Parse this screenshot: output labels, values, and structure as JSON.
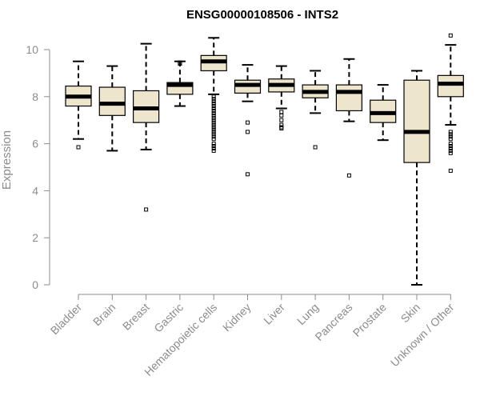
{
  "chart_data": {
    "type": "boxplot",
    "title": "ENSG00000108506 - INTS2",
    "ylabel": "Expression",
    "xlabel": "",
    "ylim": [
      0,
      10
    ],
    "yticks": [
      0,
      2,
      4,
      6,
      8,
      10
    ],
    "box_fill": "#ede6cc",
    "categories": [
      "Bladder",
      "Brain",
      "Breast",
      "Gastric",
      "Hematopoietic cells",
      "Kidney",
      "Liver",
      "Lung",
      "Pancreas",
      "Prostate",
      "Skin",
      "Unknown / Other"
    ],
    "boxes": [
      {
        "name": "Bladder",
        "whisker_low": 6.2,
        "q1": 7.6,
        "median": 8.0,
        "q3": 8.45,
        "whisker_high": 9.5,
        "outliers": [
          5.85
        ]
      },
      {
        "name": "Brain",
        "whisker_low": 5.7,
        "q1": 7.2,
        "median": 7.7,
        "q3": 8.4,
        "whisker_high": 9.3,
        "outliers": []
      },
      {
        "name": "Breast",
        "whisker_low": 5.75,
        "q1": 6.9,
        "median": 7.5,
        "q3": 8.25,
        "whisker_high": 10.25,
        "outliers": [
          3.2
        ]
      },
      {
        "name": "Gastric",
        "whisker_low": 7.6,
        "q1": 8.1,
        "median": 8.5,
        "q3": 8.6,
        "whisker_high": 9.5,
        "outliers": [
          9.4,
          9.45
        ]
      },
      {
        "name": "Hematopoietic cells",
        "whisker_low": 8.1,
        "q1": 9.1,
        "median": 9.5,
        "q3": 9.75,
        "whisker_high": 10.5,
        "outliers": [
          8.0,
          7.9,
          7.8,
          7.7,
          7.6,
          7.5,
          7.4,
          7.3,
          7.2,
          7.1,
          7.0,
          6.9,
          6.8,
          6.7,
          6.6,
          6.5,
          6.4,
          6.3,
          6.2,
          6.0,
          5.9,
          5.8,
          5.7
        ]
      },
      {
        "name": "Kidney",
        "whisker_low": 7.8,
        "q1": 8.15,
        "median": 8.5,
        "q3": 8.7,
        "whisker_high": 9.35,
        "outliers": [
          6.9,
          6.5,
          4.7
        ]
      },
      {
        "name": "Liver",
        "whisker_low": 7.5,
        "q1": 8.2,
        "median": 8.5,
        "q3": 8.75,
        "whisker_high": 9.3,
        "outliers": [
          7.35,
          7.2,
          7.0,
          6.8,
          6.7,
          6.65
        ]
      },
      {
        "name": "Lung",
        "whisker_low": 7.3,
        "q1": 7.95,
        "median": 8.2,
        "q3": 8.5,
        "whisker_high": 9.1,
        "outliers": [
          5.85
        ]
      },
      {
        "name": "Pancreas",
        "whisker_low": 6.95,
        "q1": 7.4,
        "median": 8.2,
        "q3": 8.5,
        "whisker_high": 9.6,
        "outliers": [
          4.65
        ]
      },
      {
        "name": "Prostate",
        "whisker_low": 6.15,
        "q1": 6.9,
        "median": 7.3,
        "q3": 7.85,
        "whisker_high": 8.5,
        "outliers": []
      },
      {
        "name": "Skin",
        "whisker_low": 0.0,
        "q1": 5.2,
        "median": 6.5,
        "q3": 8.7,
        "whisker_high": 9.1,
        "outliers": []
      },
      {
        "name": "Unknown / Other",
        "whisker_low": 6.8,
        "q1": 8.0,
        "median": 8.55,
        "q3": 8.9,
        "whisker_high": 10.2,
        "outliers": [
          10.6,
          6.5,
          6.4,
          6.3,
          6.2,
          6.0,
          5.9,
          5.8,
          5.7,
          5.6,
          4.85
        ]
      }
    ]
  }
}
